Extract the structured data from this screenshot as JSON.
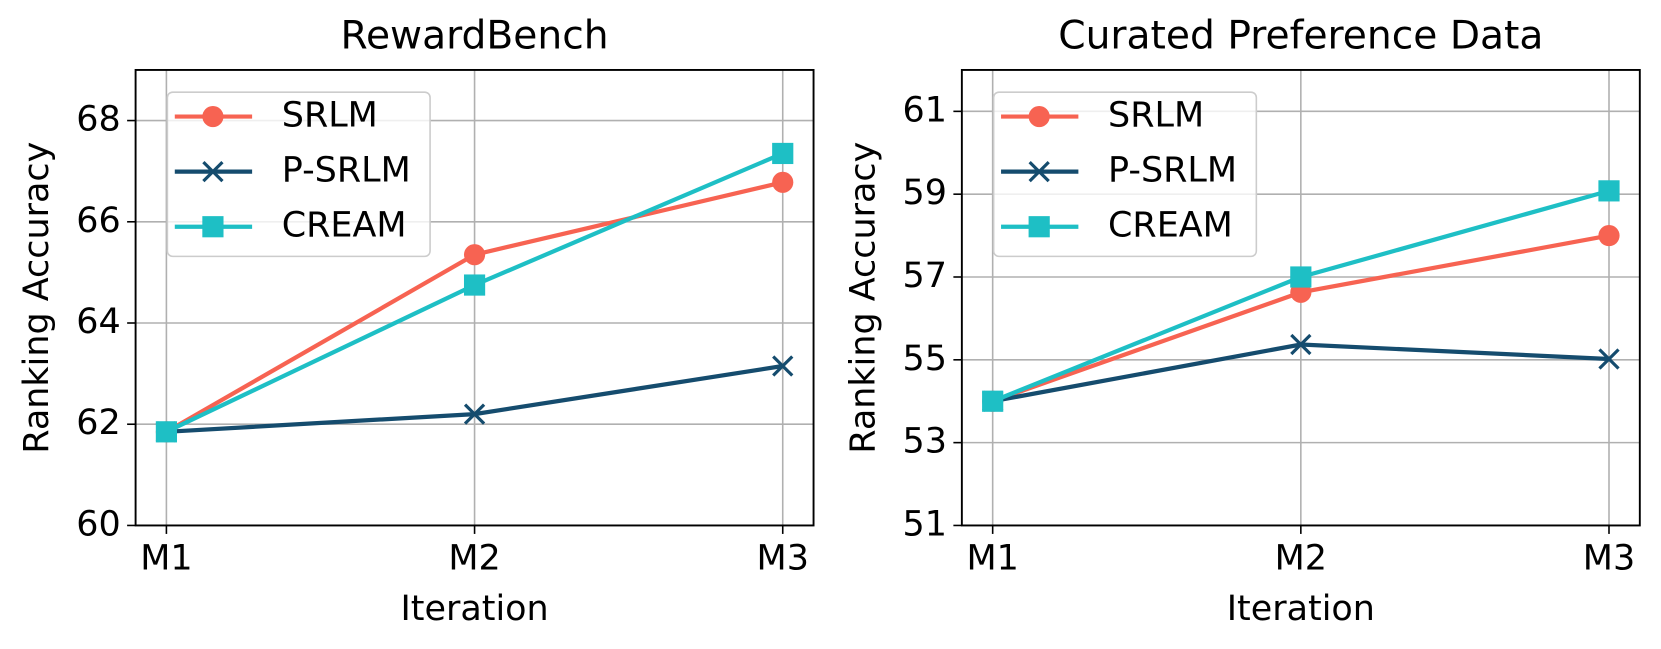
{
  "chart_data": [
    {
      "type": "line",
      "title": "RewardBench",
      "x_label": "Iteration",
      "y_label": "Ranking Accuracy",
      "categories": [
        "M1",
        "M2",
        "M3"
      ],
      "series": [
        {
          "name": "SRLM",
          "color": "#f76352",
          "marker": "circle",
          "values": [
            61.85,
            65.35,
            66.78
          ]
        },
        {
          "name": "P-SRLM",
          "color": "#154c6e",
          "marker": "x",
          "values": [
            61.85,
            62.2,
            63.15
          ]
        },
        {
          "name": "CREAM",
          "color": "#1ebfc5",
          "marker": "square",
          "values": [
            61.85,
            64.75,
            67.35
          ]
        }
      ],
      "ylim": [
        60,
        69
      ],
      "yticks": [
        60,
        62,
        64,
        66,
        68
      ],
      "grid": true,
      "legend": "upper left"
    },
    {
      "type": "line",
      "title": "Curated Preference Data",
      "x_label": "Iteration",
      "y_label": "Ranking Accuracy",
      "categories": [
        "M1",
        "M2",
        "M3"
      ],
      "series": [
        {
          "name": "SRLM",
          "color": "#f76352",
          "marker": "circle",
          "values": [
            54.0,
            56.63,
            58.0
          ]
        },
        {
          "name": "P-SRLM",
          "color": "#154c6e",
          "marker": "x",
          "values": [
            54.0,
            55.37,
            55.02
          ]
        },
        {
          "name": "CREAM",
          "color": "#1ebfc5",
          "marker": "square",
          "values": [
            54.0,
            57.0,
            59.08
          ]
        }
      ],
      "ylim": [
        51,
        62
      ],
      "yticks": [
        51,
        53,
        55,
        57,
        59,
        61
      ],
      "grid": true,
      "legend": "upper left"
    }
  ]
}
